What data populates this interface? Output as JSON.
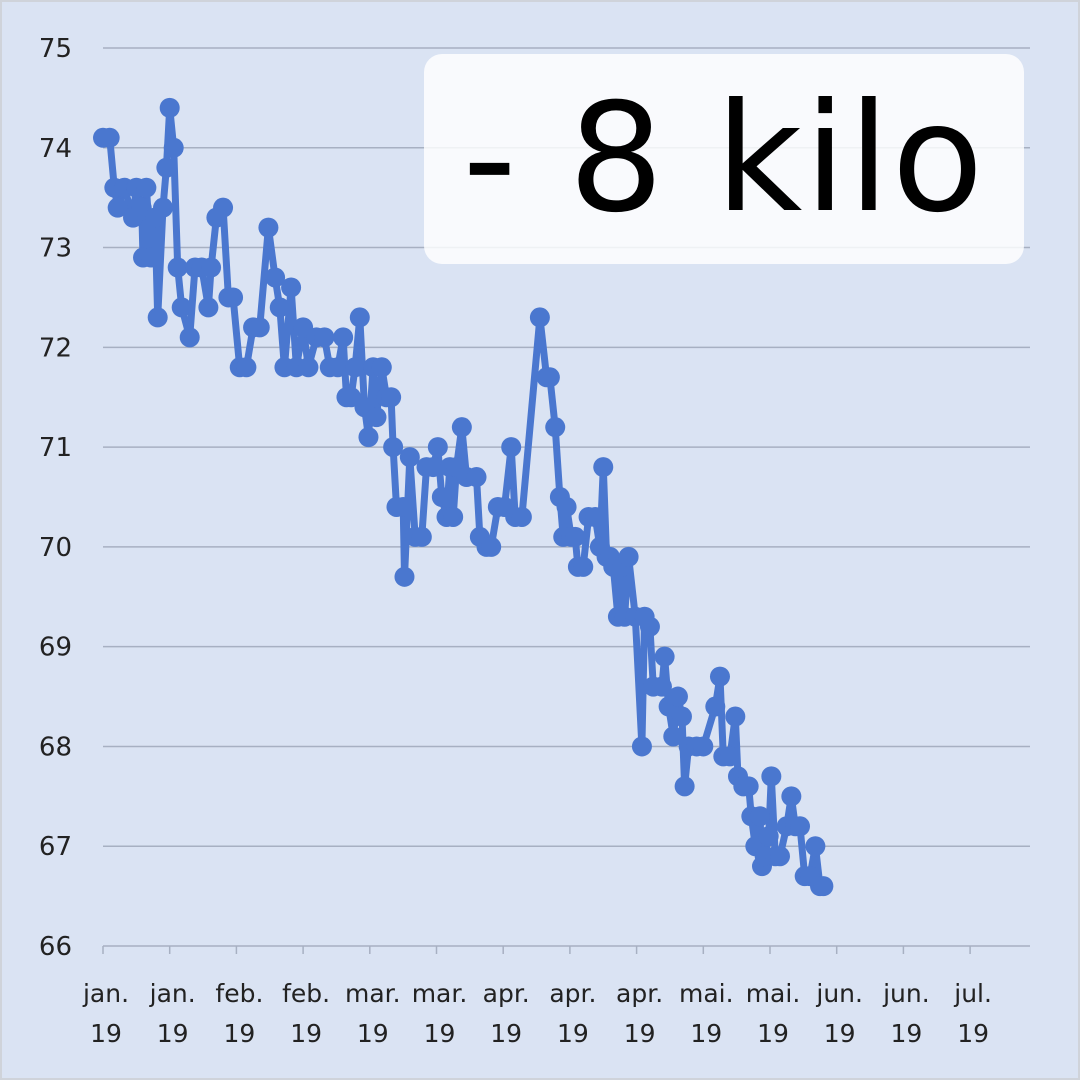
{
  "chart_data": {
    "type": "line",
    "title": "",
    "xlabel": "",
    "ylabel": "",
    "ylim": [
      66,
      75
    ],
    "y_ticks": [
      66,
      67,
      68,
      69,
      70,
      71,
      72,
      73,
      74,
      75
    ],
    "grid": true,
    "legend": "none",
    "annotation": "- 8 kilo",
    "x_tick_labels": [
      [
        "jan.",
        "19"
      ],
      [
        "jan.",
        "19"
      ],
      [
        "feb.",
        "19"
      ],
      [
        "feb.",
        "19"
      ],
      [
        "mar.",
        "19"
      ],
      [
        "mar.",
        "19"
      ],
      [
        "apr.",
        "19"
      ],
      [
        "apr.",
        "19"
      ],
      [
        "apr.",
        "19"
      ],
      [
        "mai.",
        "19"
      ],
      [
        "mai.",
        "19"
      ],
      [
        "jun.",
        "19"
      ],
      [
        "jun.",
        "19"
      ],
      [
        "jul.",
        "19"
      ]
    ],
    "series": [
      {
        "color": "#4a77cf",
        "points": [
          [
            0.0,
            74.1
          ],
          [
            0.1,
            74.1
          ],
          [
            0.17,
            73.6
          ],
          [
            0.22,
            73.4
          ],
          [
            0.32,
            73.6
          ],
          [
            0.45,
            73.3
          ],
          [
            0.5,
            73.6
          ],
          [
            0.58,
            73.4
          ],
          [
            0.6,
            72.9
          ],
          [
            0.65,
            73.6
          ],
          [
            0.72,
            72.9
          ],
          [
            0.78,
            73.3
          ],
          [
            0.82,
            72.3
          ],
          [
            0.9,
            73.4
          ],
          [
            0.95,
            73.8
          ],
          [
            1.0,
            74.4
          ],
          [
            1.06,
            74.0
          ],
          [
            1.12,
            72.8
          ],
          [
            1.18,
            72.4
          ],
          [
            1.3,
            72.1
          ],
          [
            1.38,
            72.8
          ],
          [
            1.48,
            72.8
          ],
          [
            1.58,
            72.4
          ],
          [
            1.62,
            72.8
          ],
          [
            1.7,
            73.3
          ],
          [
            1.8,
            73.4
          ],
          [
            1.88,
            72.5
          ],
          [
            1.95,
            72.5
          ],
          [
            2.05,
            71.8
          ],
          [
            2.15,
            71.8
          ],
          [
            2.25,
            72.2
          ],
          [
            2.35,
            72.2
          ],
          [
            2.48,
            73.2
          ],
          [
            2.58,
            72.7
          ],
          [
            2.65,
            72.4
          ],
          [
            2.72,
            71.8
          ],
          [
            2.82,
            72.6
          ],
          [
            2.9,
            71.8
          ],
          [
            3.0,
            72.2
          ],
          [
            3.08,
            71.8
          ],
          [
            3.2,
            72.1
          ],
          [
            3.32,
            72.1
          ],
          [
            3.4,
            71.8
          ],
          [
            3.52,
            71.8
          ],
          [
            3.6,
            72.1
          ],
          [
            3.65,
            71.5
          ],
          [
            3.72,
            71.5
          ],
          [
            3.78,
            71.8
          ],
          [
            3.85,
            72.3
          ],
          [
            3.92,
            71.4
          ],
          [
            3.98,
            71.1
          ],
          [
            4.05,
            71.8
          ],
          [
            4.1,
            71.3
          ],
          [
            4.18,
            71.8
          ],
          [
            4.25,
            71.5
          ],
          [
            4.32,
            71.5
          ],
          [
            4.35,
            71.0
          ],
          [
            4.4,
            70.4
          ],
          [
            4.5,
            70.4
          ],
          [
            4.52,
            69.7
          ],
          [
            4.6,
            70.9
          ],
          [
            4.68,
            70.1
          ],
          [
            4.78,
            70.1
          ],
          [
            4.85,
            70.8
          ],
          [
            4.95,
            70.8
          ],
          [
            5.02,
            71.0
          ],
          [
            5.08,
            70.5
          ],
          [
            5.15,
            70.3
          ],
          [
            5.2,
            70.8
          ],
          [
            5.25,
            70.3
          ],
          [
            5.3,
            70.8
          ],
          [
            5.38,
            71.2
          ],
          [
            5.45,
            70.7
          ],
          [
            5.6,
            70.7
          ],
          [
            5.65,
            70.1
          ],
          [
            5.75,
            70.0
          ],
          [
            5.82,
            70.0
          ],
          [
            5.92,
            70.4
          ],
          [
            6.02,
            70.4
          ],
          [
            6.12,
            71.0
          ],
          [
            6.18,
            70.3
          ],
          [
            6.28,
            70.3
          ],
          [
            6.55,
            72.3
          ],
          [
            6.65,
            71.7
          ],
          [
            6.7,
            71.7
          ],
          [
            6.78,
            71.2
          ],
          [
            6.85,
            70.5
          ],
          [
            6.9,
            70.1
          ],
          [
            6.95,
            70.4
          ],
          [
            7.02,
            70.1
          ],
          [
            7.08,
            70.1
          ],
          [
            7.12,
            69.8
          ],
          [
            7.2,
            69.8
          ],
          [
            7.28,
            70.3
          ],
          [
            7.38,
            70.3
          ],
          [
            7.45,
            70.0
          ],
          [
            7.5,
            70.8
          ],
          [
            7.55,
            69.9
          ],
          [
            7.6,
            69.9
          ],
          [
            7.65,
            69.8
          ],
          [
            7.72,
            69.3
          ],
          [
            7.78,
            69.8
          ],
          [
            7.82,
            69.3
          ],
          [
            7.88,
            69.9
          ],
          [
            7.98,
            69.3
          ],
          [
            8.08,
            68.0
          ],
          [
            8.12,
            69.3
          ],
          [
            8.2,
            69.2
          ],
          [
            8.25,
            68.6
          ],
          [
            8.38,
            68.6
          ],
          [
            8.42,
            68.9
          ],
          [
            8.48,
            68.4
          ],
          [
            8.55,
            68.1
          ],
          [
            8.62,
            68.5
          ],
          [
            8.68,
            68.3
          ],
          [
            8.72,
            67.6
          ],
          [
            8.78,
            68.0
          ],
          [
            8.9,
            68.0
          ],
          [
            9.0,
            68.0
          ],
          [
            9.18,
            68.4
          ],
          [
            9.25,
            68.7
          ],
          [
            9.3,
            67.9
          ],
          [
            9.4,
            67.9
          ],
          [
            9.48,
            68.3
          ],
          [
            9.52,
            67.7
          ],
          [
            9.6,
            67.6
          ],
          [
            9.68,
            67.6
          ],
          [
            9.72,
            67.3
          ],
          [
            9.78,
            67.0
          ],
          [
            9.85,
            67.3
          ],
          [
            9.88,
            66.8
          ],
          [
            9.92,
            66.9
          ],
          [
            9.98,
            67.1
          ],
          [
            10.02,
            67.7
          ],
          [
            10.08,
            66.9
          ],
          [
            10.15,
            66.9
          ],
          [
            10.25,
            67.2
          ],
          [
            10.32,
            67.5
          ],
          [
            10.38,
            67.2
          ],
          [
            10.45,
            67.2
          ],
          [
            10.52,
            66.7
          ],
          [
            10.6,
            66.7
          ],
          [
            10.68,
            67.0
          ],
          [
            10.75,
            66.6
          ],
          [
            10.8,
            66.6
          ]
        ]
      }
    ]
  }
}
